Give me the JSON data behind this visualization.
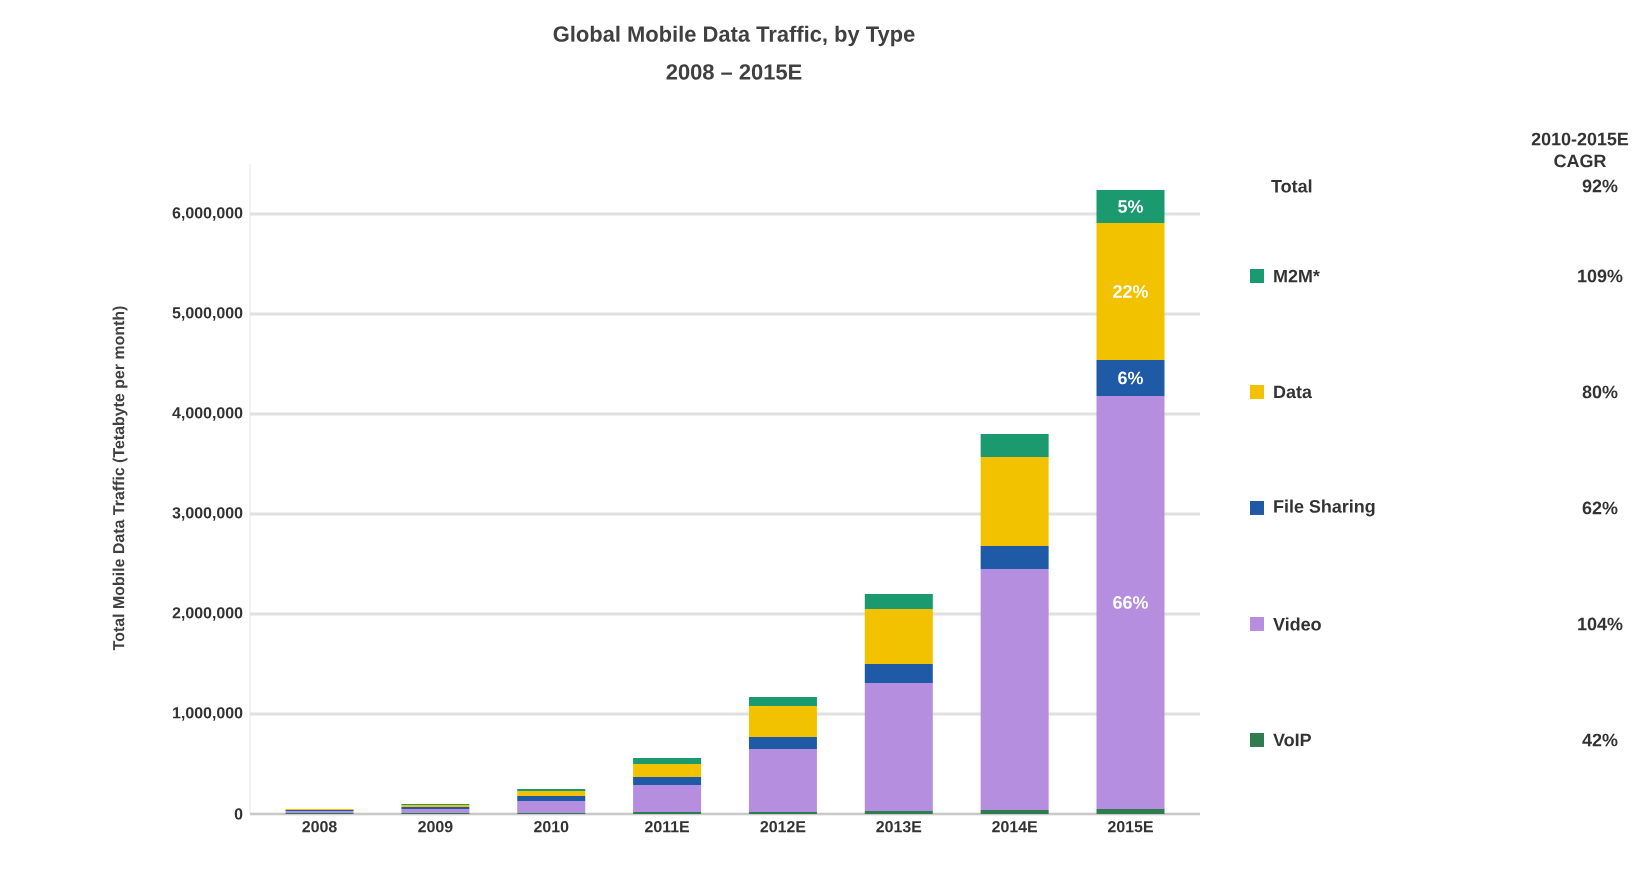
{
  "chart_data": {
    "type": "bar",
    "stacked": true,
    "title": "Global Mobile Data Traffic, by Type",
    "subtitle": "2008 – 2015E",
    "ylabel": "Total Mobile Data Traffic (Tetabyte per month)",
    "categories": [
      "2008",
      "2009",
      "2010",
      "2011E",
      "2012E",
      "2013E",
      "2014E",
      "2015E"
    ],
    "series": [
      {
        "name": "VoIP",
        "color": "#2e7d4f",
        "values": [
          10000,
          10000,
          10000,
          20000,
          20000,
          30000,
          40000,
          50000
        ]
      },
      {
        "name": "Video",
        "color": "#b58ee0",
        "values": [
          20000,
          40000,
          120000,
          270000,
          630000,
          1280000,
          2410000,
          4130000
        ]
      },
      {
        "name": "File Sharing",
        "color": "#1f5aa6",
        "values": [
          10000,
          20000,
          50000,
          80000,
          120000,
          190000,
          230000,
          360000
        ]
      },
      {
        "name": "Data",
        "color": "#f2c200",
        "values": [
          10000,
          20000,
          50000,
          130000,
          310000,
          550000,
          890000,
          1370000
        ]
      },
      {
        "name": "M2M*",
        "color": "#1a9a6e",
        "values": [
          0,
          10000,
          20000,
          60000,
          90000,
          150000,
          230000,
          330000
        ]
      }
    ],
    "ylim": [
      0,
      6500000
    ],
    "yticks": [
      {
        "value": 0,
        "label": "0"
      },
      {
        "value": 1000000,
        "label": "1,000,000"
      },
      {
        "value": 2000000,
        "label": "2,000,000"
      },
      {
        "value": 3000000,
        "label": "3,000,000"
      },
      {
        "value": 4000000,
        "label": "4,000,000"
      },
      {
        "value": 5000000,
        "label": "5,000,000"
      },
      {
        "value": 6000000,
        "label": "6,000,000"
      }
    ],
    "grid": "y",
    "legend": "right",
    "annotations": [
      "2010-2015E CAGR",
      "Total",
      "92%",
      "109%",
      "80%",
      "62%",
      "104%",
      "42%",
      "66%",
      "6%",
      "22%",
      "5%"
    ]
  }
}
